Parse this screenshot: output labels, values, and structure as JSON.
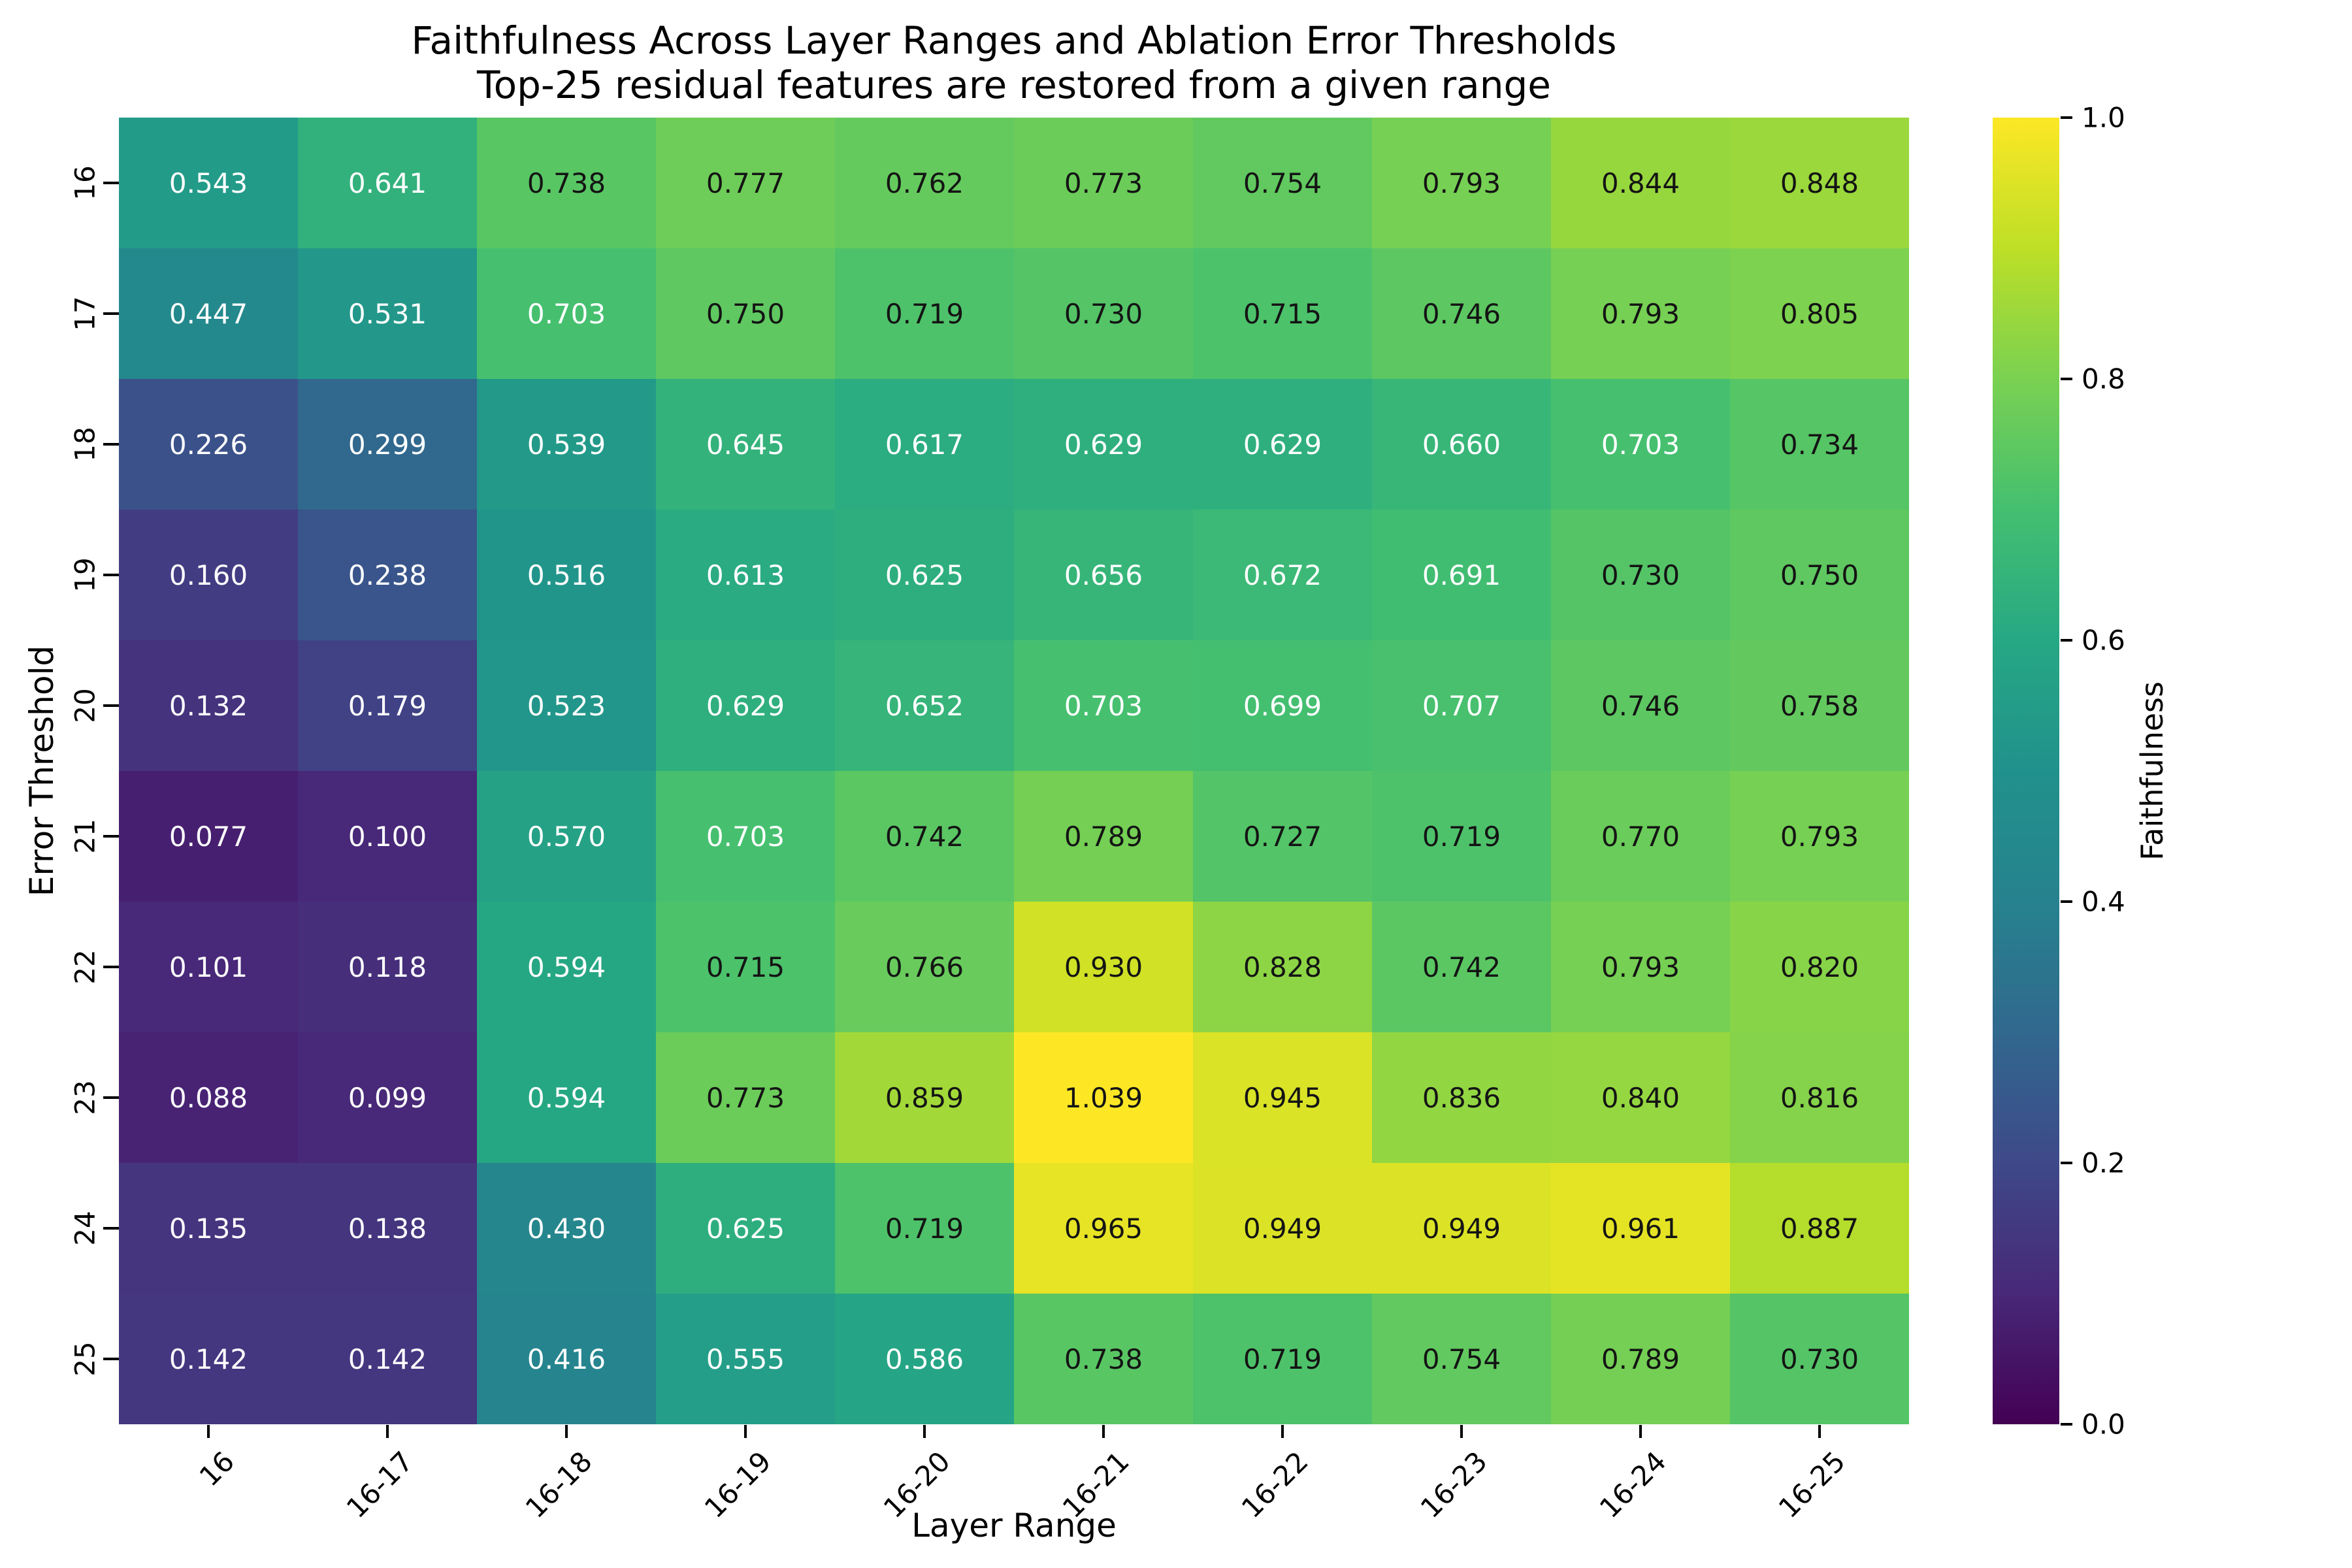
{
  "chart_data": {
    "type": "heatmap",
    "title": "Faithfulness Across Layer Ranges and Ablation Error Thresholds",
    "subtitle": "Top-25 residual features are restored from a given range",
    "xlabel": "Layer Range",
    "ylabel": "Error Threshold",
    "colorbar_label": "Faithfulness",
    "x_categories": [
      "16",
      "16-17",
      "16-18",
      "16-19",
      "16-20",
      "16-21",
      "16-22",
      "16-23",
      "16-24",
      "16-25"
    ],
    "y_categories": [
      "16",
      "17",
      "18",
      "19",
      "20",
      "21",
      "22",
      "23",
      "24",
      "25"
    ],
    "values": [
      [
        0.543,
        0.641,
        0.738,
        0.777,
        0.762,
        0.773,
        0.754,
        0.793,
        0.844,
        0.848
      ],
      [
        0.447,
        0.531,
        0.703,
        0.75,
        0.719,
        0.73,
        0.715,
        0.746,
        0.793,
        0.805
      ],
      [
        0.226,
        0.299,
        0.539,
        0.645,
        0.617,
        0.629,
        0.629,
        0.66,
        0.703,
        0.734
      ],
      [
        0.16,
        0.238,
        0.516,
        0.613,
        0.625,
        0.656,
        0.672,
        0.691,
        0.73,
        0.75
      ],
      [
        0.132,
        0.179,
        0.523,
        0.629,
        0.652,
        0.703,
        0.699,
        0.707,
        0.746,
        0.758
      ],
      [
        0.077,
        0.1,
        0.57,
        0.703,
        0.742,
        0.789,
        0.727,
        0.719,
        0.77,
        0.793
      ],
      [
        0.101,
        0.118,
        0.594,
        0.715,
        0.766,
        0.93,
        0.828,
        0.742,
        0.793,
        0.82
      ],
      [
        0.088,
        0.099,
        0.594,
        0.773,
        0.859,
        1.039,
        0.945,
        0.836,
        0.84,
        0.816
      ],
      [
        0.135,
        0.138,
        0.43,
        0.625,
        0.719,
        0.965,
        0.949,
        0.949,
        0.961,
        0.887
      ],
      [
        0.142,
        0.142,
        0.416,
        0.555,
        0.586,
        0.738,
        0.719,
        0.754,
        0.789,
        0.73
      ]
    ],
    "vmin": 0.0,
    "vmax": 1.0,
    "colorbar_tick_labels": [
      "0.0",
      "0.2",
      "0.4",
      "0.6",
      "0.8",
      "1.0"
    ],
    "annotation_decimals": 3,
    "annotation_color_switch_value": 0.71,
    "annotation_text_colors": {
      "low": "#ffffff",
      "high": "#141414"
    },
    "colormap": "viridis",
    "colormap_stops": [
      "#440154",
      "#482878",
      "#3e4989",
      "#31688e",
      "#26828e",
      "#21918c",
      "#26a884",
      "#44bf70",
      "#7ad151",
      "#bddf26",
      "#fde725"
    ],
    "grid": false,
    "legend_position": "right-colorbar"
  }
}
